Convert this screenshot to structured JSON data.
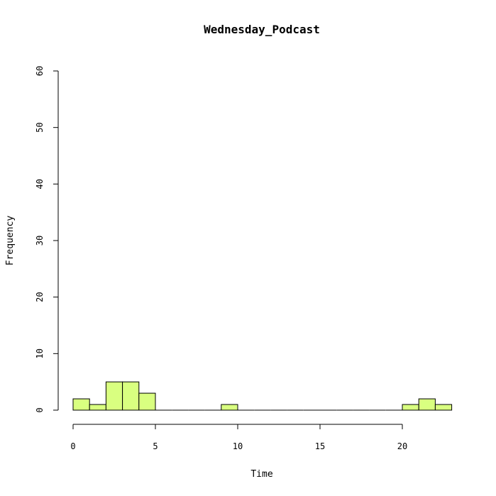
{
  "chart_data": {
    "type": "bar",
    "title": "Wednesday_Podcast",
    "xlabel": "Time",
    "ylabel": "Frequency",
    "bar_color": "#d9ff80",
    "xlim": [
      0,
      24
    ],
    "ylim": [
      0,
      60
    ],
    "x_ticks": [
      0,
      5,
      10,
      15,
      20
    ],
    "y_ticks": [
      0,
      10,
      20,
      30,
      40,
      50,
      60
    ],
    "bin_width": 1,
    "bins": [
      {
        "start": 0,
        "end": 1,
        "count": 2
      },
      {
        "start": 1,
        "end": 2,
        "count": 1
      },
      {
        "start": 2,
        "end": 3,
        "count": 5
      },
      {
        "start": 3,
        "end": 4,
        "count": 5
      },
      {
        "start": 4,
        "end": 5,
        "count": 3
      },
      {
        "start": 5,
        "end": 6,
        "count": 0
      },
      {
        "start": 6,
        "end": 7,
        "count": 0
      },
      {
        "start": 7,
        "end": 8,
        "count": 0
      },
      {
        "start": 8,
        "end": 9,
        "count": 0
      },
      {
        "start": 9,
        "end": 10,
        "count": 1
      },
      {
        "start": 10,
        "end": 11,
        "count": 0
      },
      {
        "start": 11,
        "end": 12,
        "count": 0
      },
      {
        "start": 12,
        "end": 13,
        "count": 0
      },
      {
        "start": 13,
        "end": 14,
        "count": 0
      },
      {
        "start": 14,
        "end": 15,
        "count": 0
      },
      {
        "start": 15,
        "end": 16,
        "count": 0
      },
      {
        "start": 16,
        "end": 17,
        "count": 0
      },
      {
        "start": 17,
        "end": 18,
        "count": 0
      },
      {
        "start": 18,
        "end": 19,
        "count": 0
      },
      {
        "start": 19,
        "end": 20,
        "count": 0
      },
      {
        "start": 20,
        "end": 21,
        "count": 1
      },
      {
        "start": 21,
        "end": 22,
        "count": 2
      },
      {
        "start": 22,
        "end": 23,
        "count": 1
      }
    ]
  }
}
